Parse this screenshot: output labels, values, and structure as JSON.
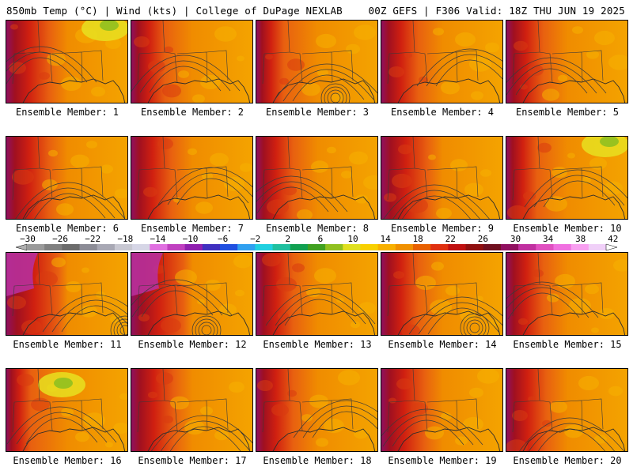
{
  "header": {
    "left": "850mb Temp (°C) | Wind (kts) | College of DuPage NEXLAB",
    "right": "00Z GEFS | F306 Valid: 18Z THU JUN 19 2025"
  },
  "colorbar": {
    "ticks": [
      "−30",
      "−26",
      "−22",
      "−18",
      "−14",
      "−10",
      "−6",
      "−2",
      "2",
      "6",
      "10",
      "14",
      "18",
      "22",
      "26",
      "30",
      "34",
      "38",
      "42"
    ],
    "colors": [
      "#9a9a9a",
      "#808080",
      "#6c6c6c",
      "#8c8c96",
      "#a8a8b4",
      "#c8c8d2",
      "#d6d6e6",
      "#e070e0",
      "#c040c0",
      "#9020b0",
      "#4030c0",
      "#2050e0",
      "#30a0f0",
      "#20d0e0",
      "#20c0a0",
      "#10a050",
      "#40a020",
      "#90c020",
      "#e0e020",
      "#f8d000",
      "#f8b000",
      "#f09000",
      "#e86000",
      "#e03010",
      "#c01010",
      "#901010",
      "#701020",
      "#901060",
      "#c030a0",
      "#e050c0",
      "#f070e0",
      "#f8a0f0",
      "#f0d0f8"
    ]
  },
  "members": [
    {
      "label": "Ensemble Member: 1",
      "warm": 0.7,
      "yellow": true
    },
    {
      "label": "Ensemble Member: 2",
      "warm": 0.55,
      "yellow": false
    },
    {
      "label": "Ensemble Member: 3",
      "warm": 0.45,
      "yellow": false
    },
    {
      "label": "Ensemble Member: 4",
      "warm": 0.6,
      "yellow": false
    },
    {
      "label": "Ensemble Member: 5",
      "warm": 0.6,
      "yellow": false
    },
    {
      "label": "Ensemble Member: 6",
      "warm": 0.7,
      "yellow": false
    },
    {
      "label": "Ensemble Member: 7",
      "warm": 0.65,
      "yellow": false
    },
    {
      "label": "Ensemble Member: 8",
      "warm": 0.6,
      "yellow": false
    },
    {
      "label": "Ensemble Member: 9",
      "warm": 0.75,
      "yellow": false
    },
    {
      "label": "Ensemble Member: 10",
      "warm": 0.5,
      "yellow": true
    },
    {
      "label": "Ensemble Member: 11",
      "warm": 0.85,
      "yellow": false
    },
    {
      "label": "Ensemble Member: 12",
      "warm": 0.85,
      "yellow": false
    },
    {
      "label": "Ensemble Member: 13",
      "warm": 0.6,
      "yellow": false
    },
    {
      "label": "Ensemble Member: 14",
      "warm": 0.6,
      "yellow": false
    },
    {
      "label": "Ensemble Member: 15",
      "warm": 0.6,
      "yellow": false
    },
    {
      "label": "Ensemble Member: 16",
      "warm": 0.4,
      "yellow": true
    },
    {
      "label": "Ensemble Member: 17",
      "warm": 0.7,
      "yellow": false
    },
    {
      "label": "Ensemble Member: 18",
      "warm": 0.6,
      "yellow": false
    },
    {
      "label": "Ensemble Member: 19",
      "warm": 0.7,
      "yellow": false
    },
    {
      "label": "Ensemble Member: 20",
      "warm": 0.65,
      "yellow": false
    }
  ]
}
